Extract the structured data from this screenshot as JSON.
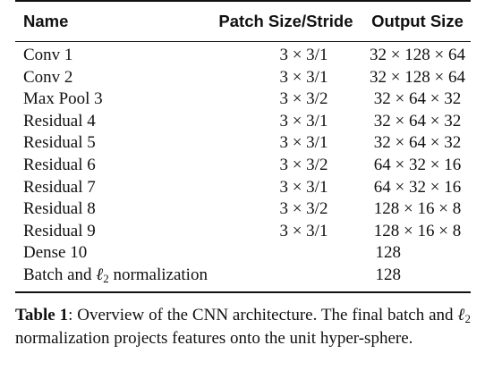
{
  "table": {
    "headers": [
      "Name",
      "Patch Size/Stride",
      "Output Size"
    ],
    "rows": [
      {
        "name": "Conv 1",
        "patch": "3 × 3/1",
        "output": "32 × 128 × 64"
      },
      {
        "name": "Conv 2",
        "patch": "3 × 3/1",
        "output": "32 × 128 × 64"
      },
      {
        "name": "Max Pool 3",
        "patch": "3 × 3/2",
        "output": "32 × 64 × 32"
      },
      {
        "name": "Residual 4",
        "patch": "3 × 3/1",
        "output": "32 × 64 × 32"
      },
      {
        "name": "Residual 5",
        "patch": "3 × 3/1",
        "output": "32 × 64 × 32"
      },
      {
        "name": "Residual 6",
        "patch": "3 × 3/2",
        "output": "64 × 32 × 16"
      },
      {
        "name": "Residual 7",
        "patch": "3 × 3/1",
        "output": "64 × 32 × 16"
      },
      {
        "name": "Residual 8",
        "patch": "3 × 3/2",
        "output": "128 × 16 × 8"
      },
      {
        "name": "Residual 9",
        "patch": "3 × 3/1",
        "output": "128 × 16 × 8"
      },
      {
        "name": "Dense 10",
        "patch": "",
        "output": "128"
      },
      {
        "name_prefix": "Batch and ",
        "name_ell": "ℓ",
        "name_sub": "2",
        "name_suffix": " normalization",
        "patch": "",
        "output": "128"
      }
    ]
  },
  "caption": {
    "label": "Table 1",
    "text_1": ": Overview of the CNN architecture. The final batch and ",
    "ell": "ℓ",
    "sub": "2",
    "text_2": " normalization projects features onto the unit hyper-sphere."
  }
}
